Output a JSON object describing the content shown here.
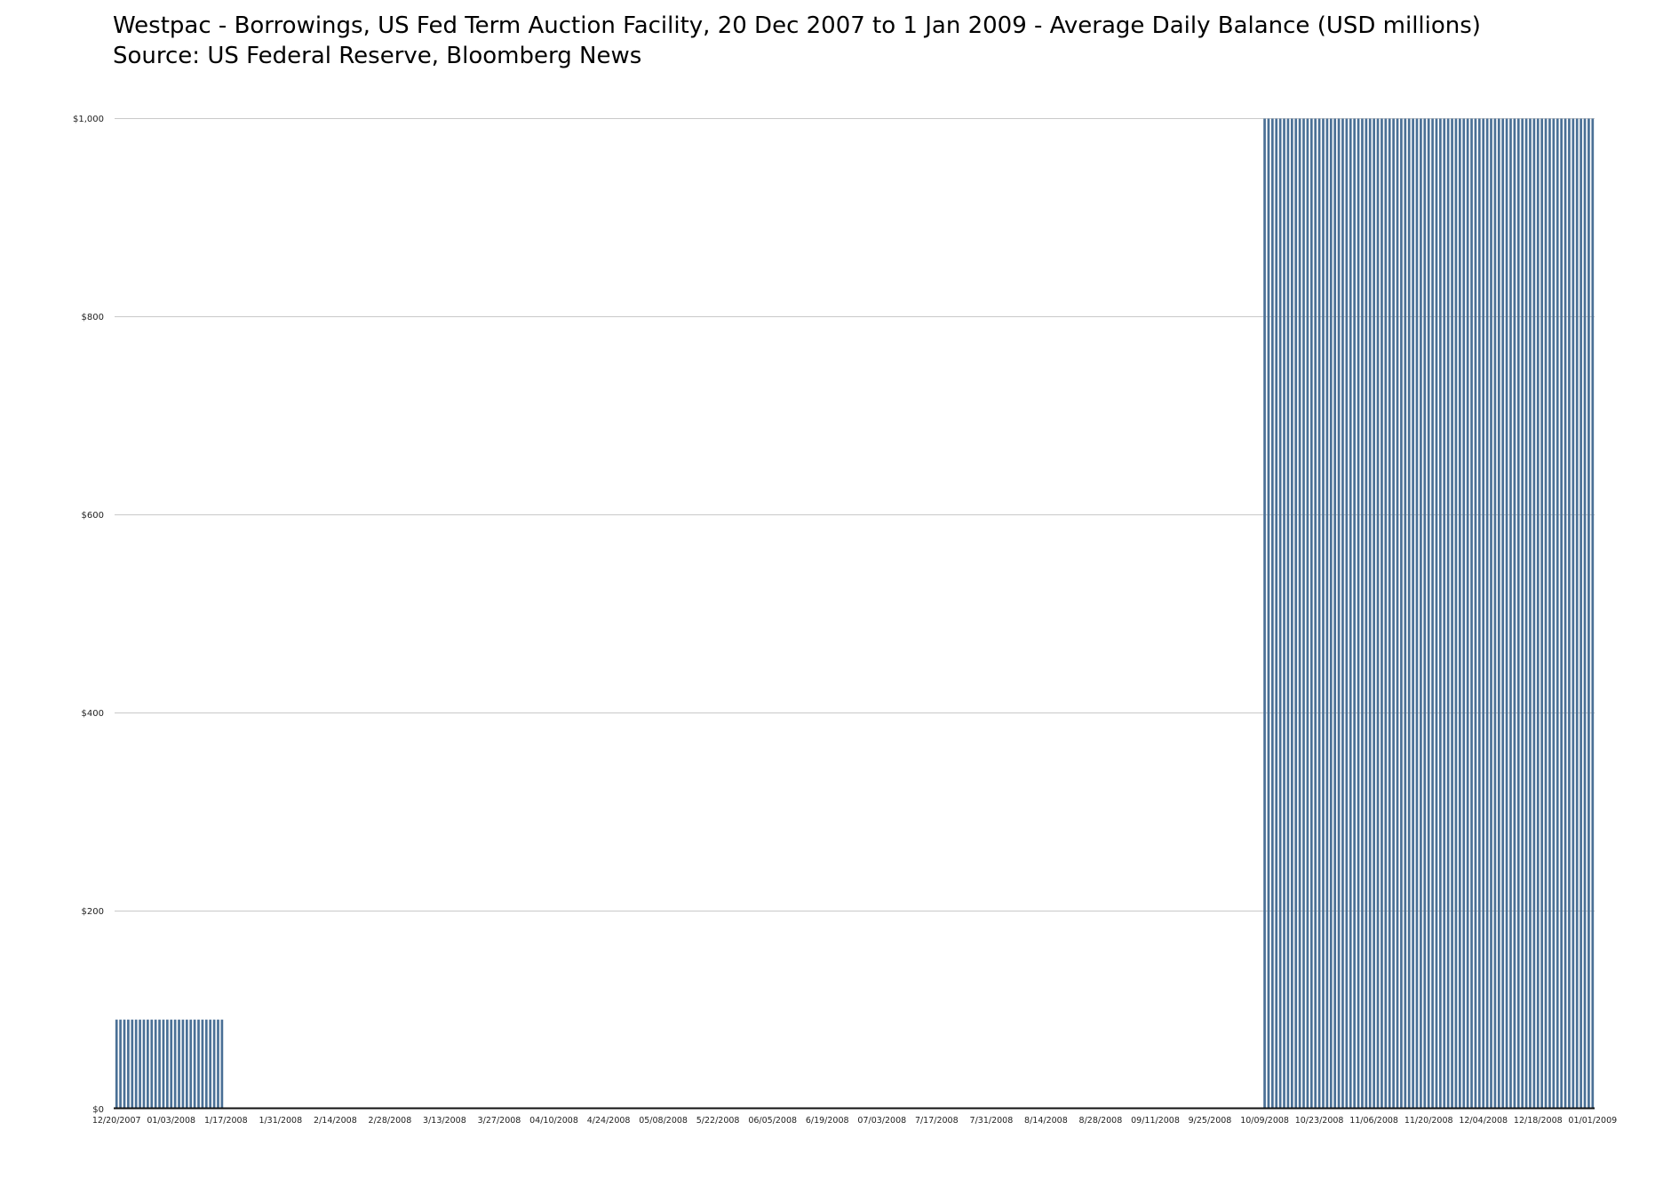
{
  "chart_data": {
    "type": "bar",
    "title": "Westpac - Borrowings, US Fed Term Auction Facility, 20 Dec 2007 to 1 Jan 2009 - Average Daily Balance (USD millions)",
    "source": "Source: US Federal Reserve, Bloomberg News",
    "xlabel": "",
    "ylabel": "",
    "ylim": [
      0,
      1000
    ],
    "y_tick_interval": 200,
    "y_tick_values": [
      0,
      200,
      400,
      600,
      800,
      1000
    ],
    "y_tick_labels": [
      "$0",
      "$200",
      "$400",
      "$600",
      "$800",
      "$1,000"
    ],
    "frequency": "daily",
    "start_date": "12/20/2007",
    "end_date": "01/01/2009",
    "num_days": 379,
    "segments": [
      {
        "start_date": "12/20/2007",
        "end_date": "1/16/2008",
        "start_index": 0,
        "end_index": 27,
        "value": 90
      },
      {
        "start_date": "1/17/2008",
        "end_date": "10/08/2008",
        "start_index": 28,
        "end_index": 293,
        "value": 0
      },
      {
        "start_date": "10/09/2008",
        "end_date": "01/01/2009",
        "start_index": 294,
        "end_index": 378,
        "value": 1000
      }
    ],
    "x_tick_every_days": 14,
    "x_tick_labels": [
      "12/20/2007",
      "01/03/2008",
      "1/17/2008",
      "1/31/2008",
      "2/14/2008",
      "2/28/2008",
      "3/13/2008",
      "3/27/2008",
      "04/10/2008",
      "4/24/2008",
      "05/08/2008",
      "5/22/2008",
      "06/05/2008",
      "6/19/2008",
      "07/03/2008",
      "7/17/2008",
      "7/31/2008",
      "8/14/2008",
      "8/28/2008",
      "09/11/2008",
      "9/25/2008",
      "10/09/2008",
      "10/23/2008",
      "11/06/2008",
      "11/20/2008",
      "12/04/2008",
      "12/18/2008",
      "01/01/2009"
    ],
    "grid": true,
    "legend": "none",
    "bar_color": "#4a7096",
    "grid_color": "#c9c9c9",
    "axis_line_color": "#111111",
    "label_color": "#222222",
    "background_color": "#ffffff"
  }
}
